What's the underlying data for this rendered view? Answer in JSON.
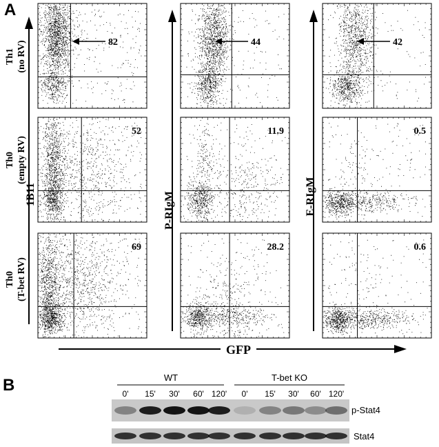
{
  "panels": {
    "a_label": "A",
    "b_label": "B"
  },
  "panel_a": {
    "columns": [
      {
        "yaxis_label": "1B11"
      },
      {
        "yaxis_label": "P-RIgM"
      },
      {
        "yaxis_label": "E-RIgM"
      }
    ],
    "rows": [
      {
        "label_line1": "Th1",
        "label_line2": "(no RV)"
      },
      {
        "label_line1": "Th0",
        "label_line2": "(empty RV)"
      },
      {
        "label_line1": "Th0",
        "label_line2": "(T-bet RV)"
      }
    ],
    "values": [
      [
        "82",
        "44",
        "42"
      ],
      [
        "52",
        "11.9",
        "0.5"
      ],
      [
        "69",
        "28.2",
        "0.6"
      ]
    ],
    "xaxis_label": "GFP"
  },
  "panel_b": {
    "groups": [
      {
        "name": "WT",
        "lanes": [
          "0'",
          "15'",
          "30'",
          "60'",
          "120'"
        ]
      },
      {
        "name": "T-bet KO",
        "lanes": [
          "0'",
          "15'",
          "30'",
          "60'",
          "120'"
        ]
      }
    ],
    "blot_labels": [
      "p-Stat4",
      "Stat4"
    ]
  }
}
